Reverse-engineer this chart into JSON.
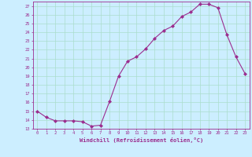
{
  "x": [
    0,
    1,
    2,
    3,
    4,
    5,
    6,
    7,
    8,
    9,
    10,
    11,
    12,
    13,
    14,
    15,
    16,
    17,
    18,
    19,
    20,
    21,
    22,
    23
  ],
  "y": [
    15.0,
    14.3,
    13.9,
    13.9,
    13.9,
    13.8,
    13.3,
    13.4,
    16.1,
    19.0,
    20.7,
    21.2,
    22.1,
    23.3,
    24.2,
    24.7,
    25.8,
    26.3,
    27.2,
    27.2,
    26.8,
    23.7,
    21.2,
    19.3
  ],
  "line_color": "#9b2d8e",
  "marker": "D",
  "marker_size": 2,
  "bg_color": "#cceeff",
  "grid_color": "#aaddcc",
  "xlabel": "Windchill (Refroidissement éolien,°C)",
  "xlim": [
    -0.5,
    23.5
  ],
  "ylim": [
    13,
    27.5
  ],
  "yticks": [
    13,
    14,
    15,
    16,
    17,
    18,
    19,
    20,
    21,
    22,
    23,
    24,
    25,
    26,
    27
  ],
  "xticks": [
    0,
    1,
    2,
    3,
    4,
    5,
    6,
    7,
    8,
    9,
    10,
    11,
    12,
    13,
    14,
    15,
    16,
    17,
    18,
    19,
    20,
    21,
    22,
    23
  ]
}
